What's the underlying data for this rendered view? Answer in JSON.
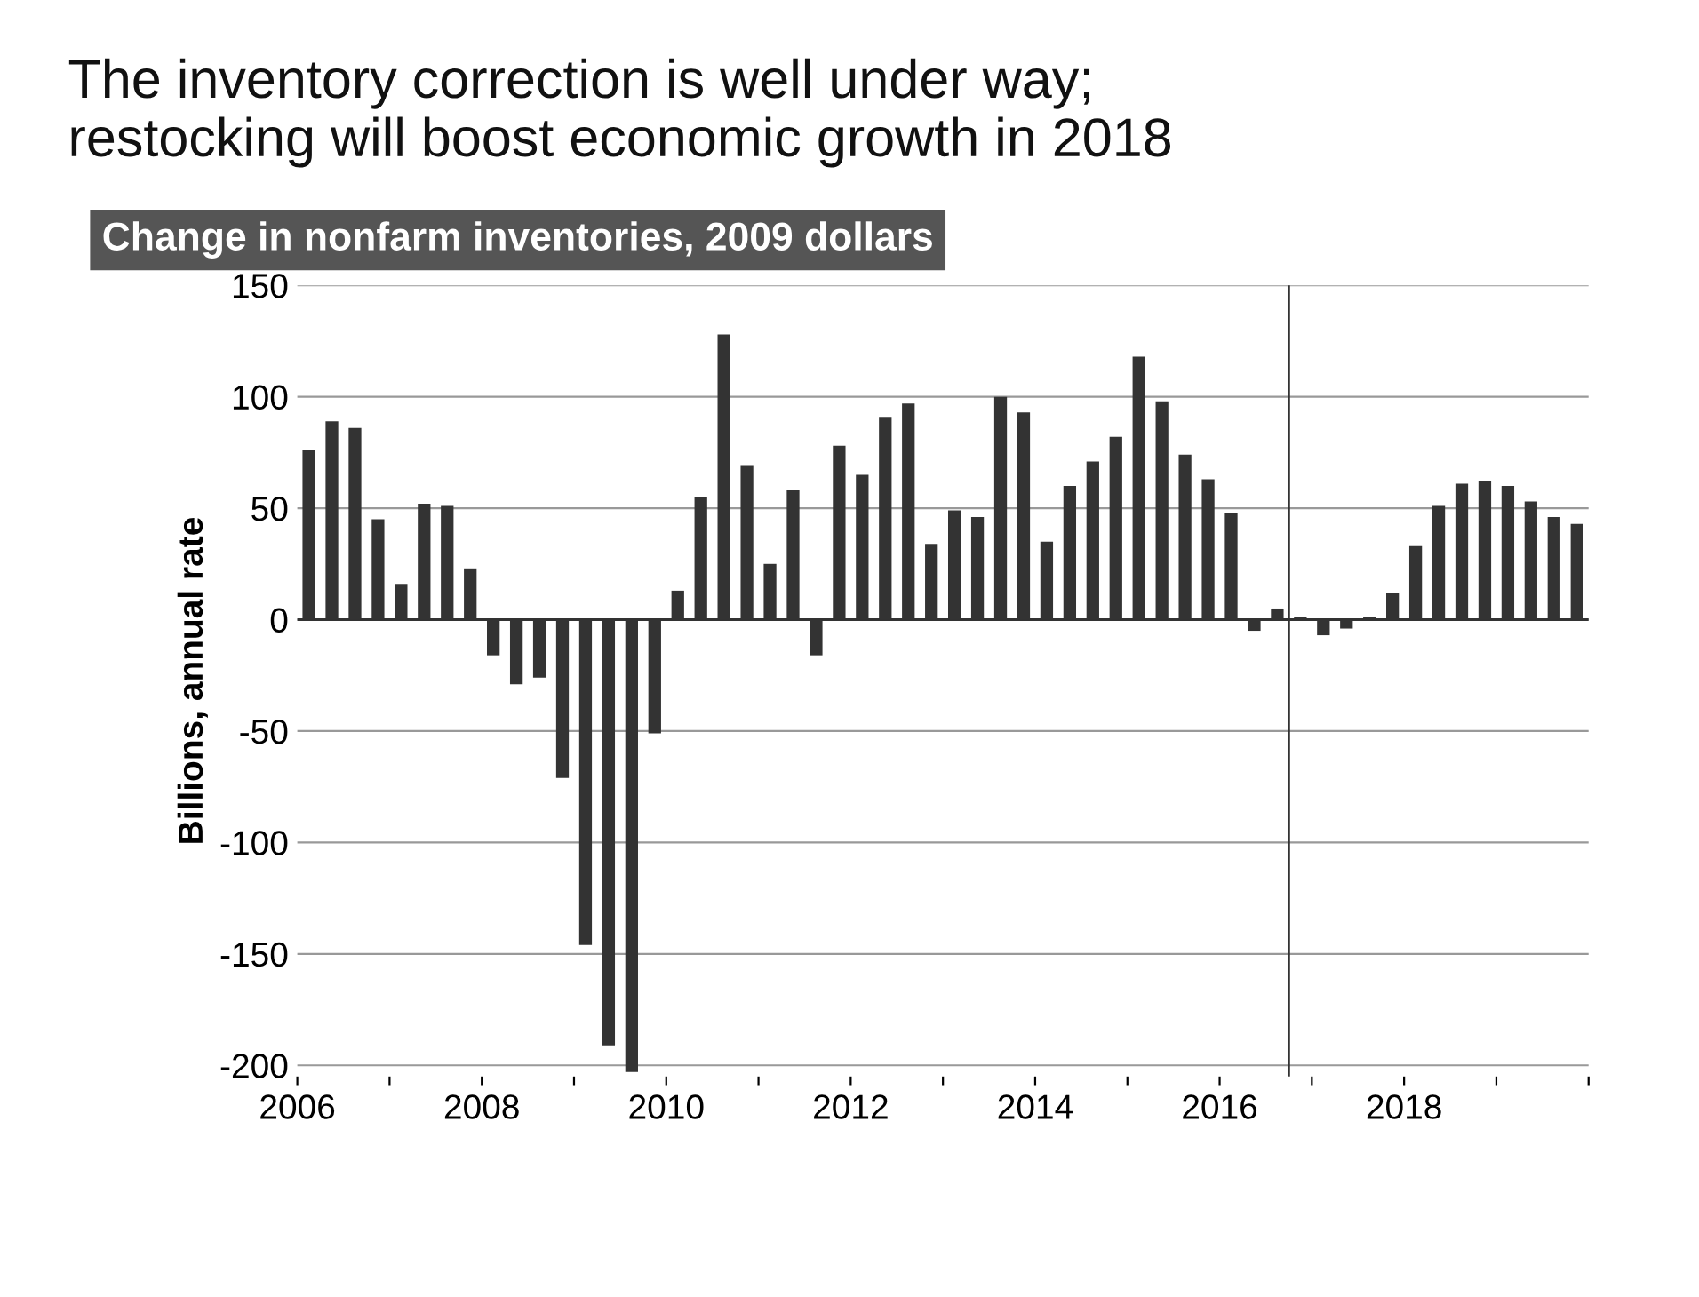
{
  "chart_data": {
    "type": "bar",
    "title": "The inventory correction is well under way;\nrestocking will boost economic growth in 2018",
    "subtitle": "Change in nonfarm inventories, 2009 dollars",
    "ylabel": "Billions, annual rate",
    "x": [
      2006.125,
      2006.375,
      2006.625,
      2006.875,
      2007.125,
      2007.375,
      2007.625,
      2007.875,
      2008.125,
      2008.375,
      2008.625,
      2008.875,
      2009.125,
      2009.375,
      2009.625,
      2009.875,
      2010.125,
      2010.375,
      2010.625,
      2010.875,
      2011.125,
      2011.375,
      2011.625,
      2011.875,
      2012.125,
      2012.375,
      2012.625,
      2012.875,
      2013.125,
      2013.375,
      2013.625,
      2013.875,
      2014.125,
      2014.375,
      2014.625,
      2014.875,
      2015.125,
      2015.375,
      2015.625,
      2015.875,
      2016.125,
      2016.375,
      2016.625,
      2016.875,
      2017.125,
      2017.375,
      2017.625,
      2017.875,
      2018.125,
      2018.375,
      2018.625,
      2018.875,
      2019.125,
      2019.375,
      2019.625,
      2019.875
    ],
    "values": [
      76,
      89,
      86,
      45,
      16,
      52,
      51,
      23,
      -16,
      -29,
      -26,
      -71,
      -146,
      -191,
      -203,
      -51,
      13,
      55,
      128,
      69,
      25,
      58,
      -16,
      78,
      65,
      91,
      97,
      34,
      49,
      46,
      100,
      93,
      35,
      60,
      71,
      82,
      118,
      98,
      74,
      63,
      48,
      -5,
      5,
      1,
      -7,
      -4,
      1,
      12,
      33,
      51,
      61,
      62,
      60,
      53,
      46,
      43
    ],
    "color": "#333333",
    "xlim": [
      2006,
      2020
    ],
    "xticks": [
      {
        "value": 2006,
        "label": "2006"
      },
      {
        "value": 2007,
        "label": null
      },
      {
        "value": 2008,
        "label": "2008"
      },
      {
        "value": 2009,
        "label": null
      },
      {
        "value": 2010,
        "label": "2010"
      },
      {
        "value": 2011,
        "label": null
      },
      {
        "value": 2012,
        "label": "2012"
      },
      {
        "value": 2013,
        "label": null
      },
      {
        "value": 2014,
        "label": "2014"
      },
      {
        "value": 2015,
        "label": null
      },
      {
        "value": 2016,
        "label": "2016"
      },
      {
        "value": 2017,
        "label": null
      },
      {
        "value": 2018,
        "label": "2018"
      },
      {
        "value": 2019,
        "label": null
      },
      {
        "value": 2020,
        "label": null
      }
    ],
    "ylim": [
      -205,
      150
    ],
    "yticks": [
      -200,
      -150,
      -100,
      -50,
      0,
      50,
      100,
      150
    ],
    "grid": "y",
    "ref_lines": [
      {
        "axis": "x",
        "value": 2016.75,
        "color": "#333333",
        "line_style": "solid"
      }
    ]
  }
}
